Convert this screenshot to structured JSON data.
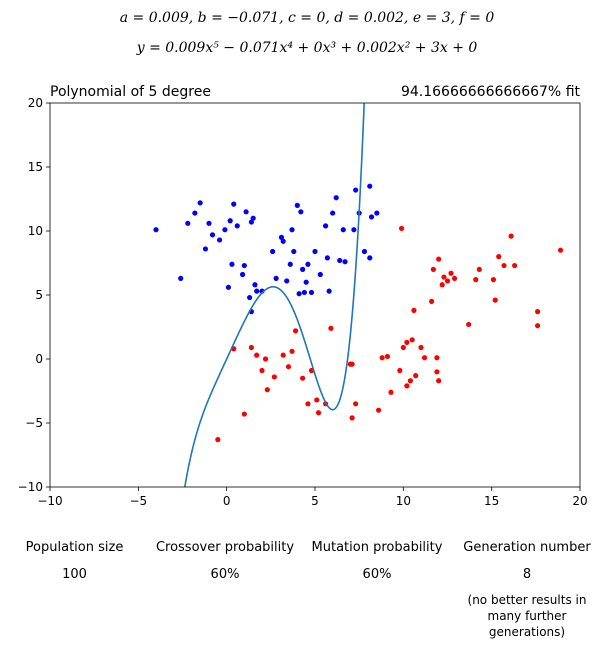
{
  "header": {
    "coefficients": "a = 0.009, b = −0.071, c = 0, d = 0.002, e = 3, f = 0",
    "equation": "y = 0.009x⁵ − 0.071x⁴ + 0x³ + 0.002x² + 3x + 0"
  },
  "chart_data": {
    "type": "scatter",
    "title_left": "Polynomial of 5 degree",
    "title_right": "94.16666666666667% fit",
    "xlim": [
      -10,
      20
    ],
    "ylim": [
      -10,
      20
    ],
    "xticks": [
      -10,
      -5,
      0,
      5,
      10,
      15,
      20
    ],
    "yticks": [
      -10,
      -5,
      0,
      5,
      10,
      15,
      20
    ],
    "grid": false,
    "colors": {
      "blue": "#0000ff",
      "red": "#ff0000",
      "curve": "#1f77b4"
    },
    "curve": {
      "a": 0.009,
      "b": -0.071,
      "c": 0,
      "d": 0.002,
      "e": 3,
      "f": 0
    },
    "series": [
      {
        "color": "blue",
        "points": [
          [
            -4,
            10.1
          ],
          [
            -2.6,
            6.3
          ],
          [
            -2.2,
            10.6
          ],
          [
            -1.8,
            11.4
          ],
          [
            -1.5,
            12.2
          ],
          [
            -1.2,
            8.6
          ],
          [
            -1,
            10.6
          ],
          [
            -0.8,
            9.7
          ],
          [
            -0.4,
            9.3
          ],
          [
            -0.1,
            10.1
          ],
          [
            0.2,
            10.8
          ],
          [
            0.1,
            5.6
          ],
          [
            0.3,
            7.4
          ],
          [
            0.4,
            12.1
          ],
          [
            0.6,
            10.4
          ],
          [
            0.9,
            6.6
          ],
          [
            1,
            7.3
          ],
          [
            1.1,
            11.5
          ],
          [
            1.3,
            4.8
          ],
          [
            1.4,
            10.7
          ],
          [
            1.5,
            11
          ],
          [
            1.6,
            5.8
          ],
          [
            1.7,
            5.3
          ],
          [
            1.4,
            3.7
          ],
          [
            2,
            5.3
          ],
          [
            2.6,
            8.4
          ],
          [
            2.8,
            6.3
          ],
          [
            3.1,
            9.5
          ],
          [
            3.2,
            9.2
          ],
          [
            3.4,
            6.1
          ],
          [
            3.6,
            7.4
          ],
          [
            3.7,
            10.1
          ],
          [
            3.8,
            8.4
          ],
          [
            4,
            12
          ],
          [
            4.1,
            5.1
          ],
          [
            4.2,
            11.5
          ],
          [
            4.3,
            7
          ],
          [
            4.4,
            5.2
          ],
          [
            4.5,
            6
          ],
          [
            4.6,
            7.4
          ],
          [
            4.8,
            5.2
          ],
          [
            5,
            8.4
          ],
          [
            5.3,
            6.6
          ],
          [
            5.6,
            10.4
          ],
          [
            5.7,
            7.9
          ],
          [
            5.8,
            5.3
          ],
          [
            6,
            11.4
          ],
          [
            6.2,
            12.6
          ],
          [
            6.4,
            7.7
          ],
          [
            6.6,
            10.1
          ],
          [
            6.7,
            7.6
          ],
          [
            7.2,
            10.1
          ],
          [
            7.3,
            13.2
          ],
          [
            7.5,
            11.4
          ],
          [
            7.8,
            8.4
          ],
          [
            8.1,
            7.9
          ],
          [
            8.1,
            13.5
          ],
          [
            8.2,
            11.1
          ],
          [
            8.5,
            11.4
          ]
        ]
      },
      {
        "color": "red",
        "points": [
          [
            -0.5,
            -6.3
          ],
          [
            0.4,
            0.8
          ],
          [
            1,
            -4.3
          ],
          [
            1.4,
            0.9
          ],
          [
            1.7,
            0.3
          ],
          [
            2,
            -0.9
          ],
          [
            2.2,
            0
          ],
          [
            2.3,
            -2.4
          ],
          [
            2.7,
            -1.4
          ],
          [
            3.2,
            0.3
          ],
          [
            3.5,
            -0.6
          ],
          [
            3.7,
            0.6
          ],
          [
            3.9,
            2.2
          ],
          [
            4.3,
            -1.5
          ],
          [
            4.6,
            -3.5
          ],
          [
            4.8,
            -0.9
          ],
          [
            5.1,
            -3.2
          ],
          [
            5.2,
            -4.2
          ],
          [
            5.6,
            -3.5
          ],
          [
            5.9,
            2.4
          ],
          [
            7,
            -0.4
          ],
          [
            7.1,
            -0.4
          ],
          [
            7.1,
            -4.6
          ],
          [
            7.3,
            -3.5
          ],
          [
            8.6,
            -4
          ],
          [
            8.8,
            0.1
          ],
          [
            9.1,
            0.2
          ],
          [
            9.3,
            -2.6
          ],
          [
            9.8,
            -0.9
          ],
          [
            9.9,
            10.2
          ],
          [
            10,
            0.9
          ],
          [
            10.2,
            -2.1
          ],
          [
            10.2,
            1.3
          ],
          [
            10.4,
            -1.7
          ],
          [
            10.5,
            1.5
          ],
          [
            10.6,
            3.8
          ],
          [
            10.7,
            -1.3
          ],
          [
            11,
            0.9
          ],
          [
            11.2,
            0.1
          ],
          [
            11.6,
            4.5
          ],
          [
            11.7,
            7
          ],
          [
            11.9,
            0.1
          ],
          [
            11.9,
            -1
          ],
          [
            12,
            -1.7
          ],
          [
            12,
            7.8
          ],
          [
            12.2,
            5.8
          ],
          [
            12.3,
            6.4
          ],
          [
            12.5,
            6.1
          ],
          [
            12.7,
            6.7
          ],
          [
            12.9,
            6.3
          ],
          [
            13.7,
            2.7
          ],
          [
            14.1,
            6.2
          ],
          [
            14.3,
            7
          ],
          [
            15.1,
            6.2
          ],
          [
            15.2,
            4.6
          ],
          [
            15.4,
            8
          ],
          [
            15.7,
            7.3
          ],
          [
            16.1,
            9.6
          ],
          [
            16.3,
            7.3
          ],
          [
            17.6,
            3.7
          ],
          [
            17.6,
            2.6
          ],
          [
            18.9,
            8.5
          ]
        ]
      }
    ]
  },
  "stats": [
    {
      "label": "Population size",
      "value": "100"
    },
    {
      "label": "Crossover probability",
      "value": "60%"
    },
    {
      "label": "Mutation probability",
      "value": "60%"
    },
    {
      "label": "Generation number",
      "value": "8",
      "note": "(no better results in many further generations)"
    }
  ]
}
